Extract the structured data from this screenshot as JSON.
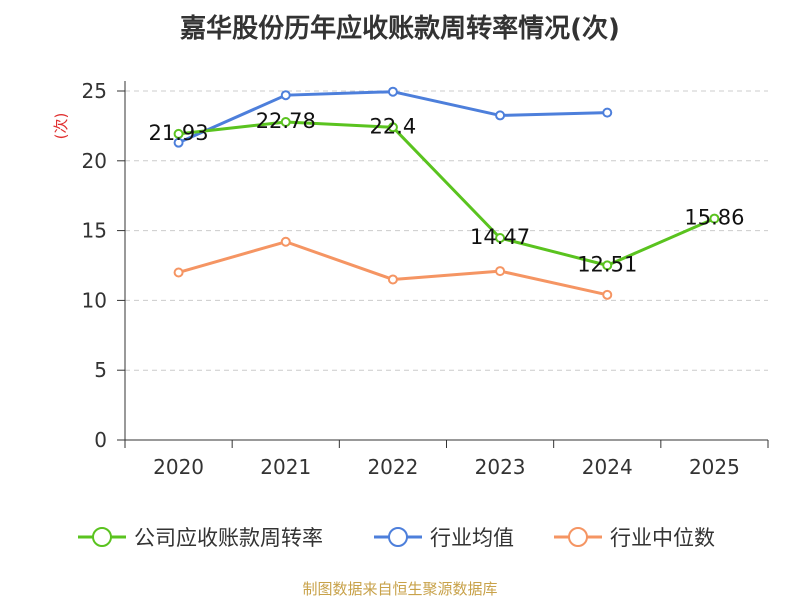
{
  "chart_data": {
    "type": "line",
    "title": "嘉华股份历年应收账款周转率情况(次)",
    "ylabel": "(次)",
    "xlabel": "",
    "ylim": [
      0,
      25
    ],
    "yticks": [
      0,
      5,
      10,
      15,
      20,
      25
    ],
    "categories": [
      "2020",
      "2021",
      "2022",
      "2023",
      "2024",
      "2025"
    ],
    "grid": true,
    "legend_position": "bottom",
    "series": [
      {
        "name": "公司应收账款周转率",
        "color": "#5ac31f",
        "values": [
          21.93,
          22.78,
          22.4,
          14.47,
          12.51,
          15.86
        ],
        "labels": [
          "21.93",
          "22.78",
          "22.4",
          "14.47",
          "12.51",
          "15.86"
        ],
        "show_labels": true
      },
      {
        "name": "行业均值",
        "color": "#4d7fdb",
        "values": [
          21.3,
          24.7,
          24.95,
          23.25,
          23.45,
          null
        ],
        "show_labels": false
      },
      {
        "name": "行业中位数",
        "color": "#f59563",
        "values": [
          12.0,
          14.2,
          11.5,
          12.1,
          10.4,
          null
        ],
        "show_labels": false
      }
    ]
  },
  "colors": {
    "axis": "#333333",
    "grid": "#cccccc",
    "ylabel": "#e03030",
    "source": "#c8a24a"
  },
  "source_note": "制图数据来自恒生聚源数据库"
}
